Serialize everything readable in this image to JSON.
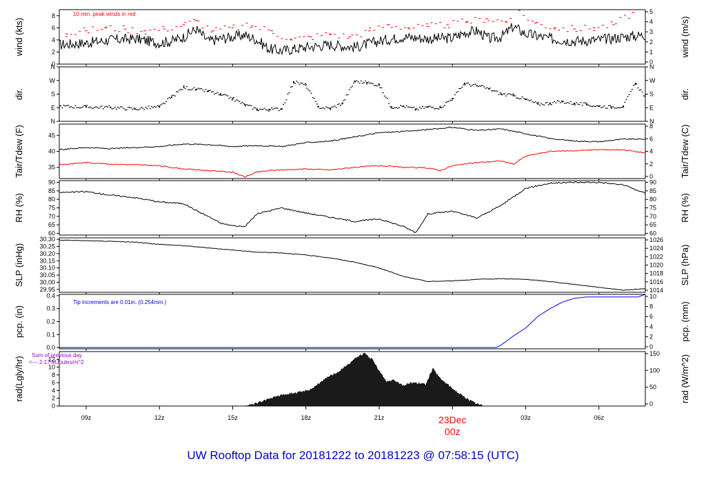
{
  "page": {
    "title": "UW Rooftop Data for 20181222  to  20181223 @ 07:58:15  (UTC)",
    "title_color": "#0000cc"
  },
  "chart_data": [
    {
      "type": "line",
      "id": "wind",
      "ylabel_left": "wind (kts)",
      "ylabel_right": "wind (m/s)",
      "yticks_left": [
        "0",
        "2",
        "4",
        "6",
        "8"
      ],
      "yticks_right": [
        "0",
        "1",
        "2",
        "3",
        "4",
        "5"
      ],
      "ylim": [
        0,
        9
      ],
      "annotation": "10 min. peak winds in red",
      "annotation_color": "#ff0000",
      "series": [
        {
          "name": "wind",
          "color": "#000000",
          "x": [
            7.9,
            9,
            10,
            11,
            12,
            12.5,
            13,
            13.5,
            14,
            14.5,
            15,
            15.5,
            16,
            16.5,
            17,
            18,
            19,
            20,
            21,
            22,
            23,
            24,
            24.5,
            25,
            25.5,
            26,
            26.5,
            27,
            28,
            29,
            30,
            31,
            31.9
          ],
          "y": [
            3.2,
            3.5,
            4.0,
            4.2,
            3.5,
            3.8,
            4.5,
            5.8,
            3.8,
            4.2,
            4.5,
            4.8,
            4.0,
            2.5,
            2.2,
            2.8,
            3.2,
            2.8,
            3.8,
            4.5,
            4.2,
            4.3,
            5.2,
            5.5,
            4.2,
            4.5,
            6.2,
            5.0,
            4.2,
            3.8,
            4.0,
            4.5,
            4.8
          ]
        },
        {
          "name": "peak",
          "color": "#ff0000",
          "x": [
            8.2,
            9.0,
            9.8,
            10.6,
            11.4,
            12.2,
            13.0,
            13.5,
            14.2,
            15.0,
            15.8,
            16.6,
            17.4,
            18.2,
            19.0,
            19.8,
            20.6,
            21.4,
            22.2,
            23.0,
            23.8,
            24.6,
            25.4,
            26.2,
            26.6,
            27.4,
            28.2,
            29.0,
            29.8,
            30.6,
            31.4
          ],
          "y": [
            5.0,
            5.5,
            6.0,
            5.8,
            5.5,
            5.8,
            6.5,
            7.2,
            5.5,
            6.0,
            6.3,
            5.5,
            4.0,
            4.5,
            5.0,
            4.5,
            5.5,
            6.5,
            6.0,
            6.2,
            6.5,
            7.0,
            7.5,
            7.0,
            9.0,
            6.8,
            6.0,
            5.8,
            6.0,
            6.5,
            8.5
          ]
        }
      ]
    },
    {
      "type": "scatter",
      "id": "dir",
      "ylabel_left": "dir.",
      "ylabel_right": "dir.",
      "yticks_left": [
        "N",
        "E",
        "S",
        "W",
        "N"
      ],
      "yticks_right": [
        "N",
        "E",
        "S",
        "W",
        "N"
      ],
      "ylim": [
        0,
        360
      ],
      "series": [
        {
          "name": "direction",
          "color": "#000000",
          "x": [
            7.9,
            9,
            10,
            11,
            12,
            12.5,
            13,
            13.5,
            14,
            14.5,
            15,
            15.5,
            16,
            16.5,
            17,
            17.5,
            18,
            18.5,
            19,
            19.5,
            20,
            20.5,
            21,
            21.5,
            22,
            22.5,
            23,
            23.5,
            24,
            24.5,
            25,
            25.5,
            26,
            26.5,
            27,
            27.5,
            28,
            28.5,
            29,
            29.5,
            30,
            30.5,
            31,
            31.5,
            31.9
          ],
          "y": [
            100,
            95,
            92,
            82,
            95,
            160,
            225,
            210,
            200,
            175,
            150,
            110,
            80,
            78,
            82,
            260,
            240,
            95,
            85,
            120,
            265,
            255,
            240,
            95,
            100,
            80,
            95,
            92,
            150,
            250,
            235,
            215,
            180,
            170,
            145,
            115,
            120,
            130,
            118,
            110,
            100,
            95,
            100,
            250,
            165
          ]
        }
      ]
    },
    {
      "type": "line",
      "id": "temp",
      "ylabel_left": "Tair/Tdew (F)",
      "ylabel_right": "Tair/Tdew (C)",
      "yticks_left": [
        "35",
        "40",
        "45"
      ],
      "yticks_right": [
        "0",
        "2",
        "4",
        "6",
        "8"
      ],
      "ylim": [
        31.5,
        48.5
      ],
      "series": [
        {
          "name": "Tair",
          "color": "#000000",
          "x": [
            7.9,
            9,
            10,
            11,
            12,
            13,
            14,
            15,
            16,
            17,
            18,
            19,
            20,
            21,
            22,
            23,
            24,
            25,
            26,
            27,
            28,
            29,
            30,
            31,
            31.9
          ],
          "y": [
            40.5,
            41.2,
            40.8,
            41.2,
            41.5,
            42.3,
            42.1,
            41.5,
            41.8,
            41.5,
            42.7,
            43.2,
            44.5,
            45.8,
            46.2,
            46.8,
            47.5,
            46.5,
            47.0,
            45.5,
            44.0,
            43.2,
            43.0,
            43.8,
            43.8
          ]
        },
        {
          "name": "Tdew",
          "color": "#ff0000",
          "x": [
            7.9,
            9,
            10,
            11,
            12,
            13,
            14,
            15,
            15.5,
            16,
            16.5,
            17,
            18,
            19,
            20,
            21,
            22,
            23,
            23.5,
            24,
            25,
            26,
            26.5,
            27,
            28,
            29,
            30,
            31,
            31.9
          ],
          "y": [
            35.8,
            36.5,
            36.0,
            35.8,
            35.5,
            34.5,
            34.0,
            33.5,
            32.0,
            33.5,
            34.0,
            34.2,
            34.5,
            34.2,
            35.0,
            35.5,
            35.0,
            34.8,
            34.0,
            35.5,
            36.5,
            37.0,
            36.0,
            38.5,
            40.0,
            40.2,
            40.5,
            40.5,
            39.5
          ]
        }
      ]
    },
    {
      "type": "line",
      "id": "rh",
      "ylabel_left": "RH (%)",
      "ylabel_right": "RH (%)",
      "yticks_left": [
        "60",
        "65",
        "70",
        "75",
        "80",
        "85",
        "90"
      ],
      "yticks_right": [
        "60",
        "65",
        "70",
        "75",
        "80",
        "85",
        "90"
      ],
      "ylim": [
        59,
        91
      ],
      "series": [
        {
          "name": "RH",
          "color": "#000000",
          "x": [
            7.9,
            9,
            10,
            11,
            12,
            13,
            13.5,
            14,
            14.5,
            15,
            15.5,
            16,
            17,
            18,
            19,
            20,
            21,
            22,
            22.5,
            23,
            24,
            25,
            26,
            27,
            28,
            29,
            30,
            31,
            31.9
          ],
          "y": [
            84.0,
            84.5,
            82.5,
            81.0,
            78.5,
            77.5,
            73.5,
            70.0,
            66.0,
            64.5,
            64.0,
            71.5,
            75.0,
            72.0,
            69.5,
            67.0,
            68.5,
            64.0,
            60.5,
            71.5,
            73.0,
            69.0,
            76.5,
            86.5,
            89.5,
            90.0,
            90.0,
            88.5,
            83.5
          ]
        }
      ]
    },
    {
      "type": "line",
      "id": "slp",
      "ylabel_left": "SLP (inHg)",
      "ylabel_right": "SLP (hPa)",
      "yticks_left": [
        "29.95",
        "30.00",
        "30.05",
        "30.10",
        "30.15",
        "30.20",
        "30.25",
        "30.30"
      ],
      "yticks_right": [
        "1014",
        "1016",
        "1018",
        "1020",
        "1022",
        "1024",
        "1026"
      ],
      "ylim": [
        29.93,
        30.31
      ],
      "series": [
        {
          "name": "SLP",
          "color": "#000000",
          "x": [
            7.9,
            9,
            10,
            11,
            12,
            13,
            14,
            15,
            16,
            17,
            18,
            19,
            20,
            21,
            22,
            23,
            24,
            25,
            26,
            27,
            28,
            29,
            30,
            31,
            31.9
          ],
          "y": [
            30.295,
            30.29,
            30.285,
            30.28,
            30.265,
            30.255,
            30.24,
            30.225,
            30.21,
            30.205,
            30.19,
            30.17,
            30.14,
            30.1,
            30.04,
            30.005,
            30.01,
            30.02,
            30.025,
            30.02,
            30.005,
            29.985,
            29.965,
            29.945,
            29.955
          ]
        }
      ]
    },
    {
      "type": "line",
      "id": "pcp",
      "ylabel_left": "pcp. (in)",
      "ylabel_right": "pcp. (mm)",
      "yticks_left": [
        "0.0",
        "0.1",
        "0.2",
        "0.3",
        "0.4"
      ],
      "yticks_right": [
        "0",
        "2",
        "4",
        "6",
        "8",
        "10"
      ],
      "ylim": [
        -0.01,
        0.41
      ],
      "annotation": "Tip increments are 0.01in. (0.254mm.)",
      "annotation_color": "#0000cc",
      "series": [
        {
          "name": "pcp",
          "color": "#0000ff",
          "x": [
            7.9,
            25.8,
            26.0,
            26.5,
            27.0,
            27.5,
            28.0,
            28.5,
            29.0,
            29.5,
            30.0,
            31.0,
            31.6,
            31.9
          ],
          "y": [
            0.0,
            0.0,
            0.02,
            0.09,
            0.15,
            0.24,
            0.3,
            0.35,
            0.38,
            0.39,
            0.39,
            0.39,
            0.39,
            0.41
          ]
        }
      ]
    },
    {
      "type": "area",
      "id": "rad",
      "ylabel_left": "rad(Lgly/hr)",
      "ylabel_right": "rad (W/m^2)",
      "yticks_left": [
        "0",
        "2",
        "4",
        "6",
        "8",
        "10",
        "12"
      ],
      "yticks_right": [
        "0",
        "50",
        "100",
        "150"
      ],
      "ylim": [
        0,
        14
      ],
      "annotation": "Sum of previous day <--- 2.17 MJoules/m^2",
      "annotation_line1": "Sum of previous day",
      "annotation_line2": "<--- 2.17 MJoules/m^2",
      "annotation_color": "#9900cc",
      "series": [
        {
          "name": "radiation",
          "color": "#1a1a1a",
          "x": [
            15.55,
            15.8,
            16.2,
            16.6,
            17.0,
            17.4,
            17.8,
            18.2,
            18.6,
            19.0,
            19.4,
            19.8,
            20.1,
            20.4,
            20.7,
            21.0,
            21.3,
            21.6,
            22.0,
            22.3,
            22.6,
            22.9,
            23.2,
            23.5,
            23.8,
            24.2,
            24.6,
            25.0,
            25.3
          ],
          "y": [
            0,
            0.3,
            1.2,
            2.0,
            2.8,
            3.2,
            3.5,
            4.3,
            6.0,
            7.8,
            9.0,
            11.0,
            12.6,
            13.5,
            12.0,
            9.0,
            6.2,
            6.8,
            5.2,
            6.0,
            5.8,
            5.5,
            9.5,
            7.0,
            5.5,
            3.5,
            1.8,
            0.5,
            0
          ]
        }
      ]
    }
  ],
  "x_axis": {
    "ticks": [
      {
        "x": 9,
        "label": "09z"
      },
      {
        "x": 12,
        "label": "12z"
      },
      {
        "x": 15,
        "label": "15z"
      },
      {
        "x": 18,
        "label": "18z"
      },
      {
        "x": 21,
        "label": "21z"
      },
      {
        "x": 27,
        "label": "03z"
      },
      {
        "x": 30,
        "label": "06z"
      }
    ],
    "day_marker": {
      "x": 24,
      "line1": "23Dec",
      "line2": "00z",
      "color": "#ff0000"
    },
    "xlim": [
      7.9,
      31.9
    ]
  }
}
